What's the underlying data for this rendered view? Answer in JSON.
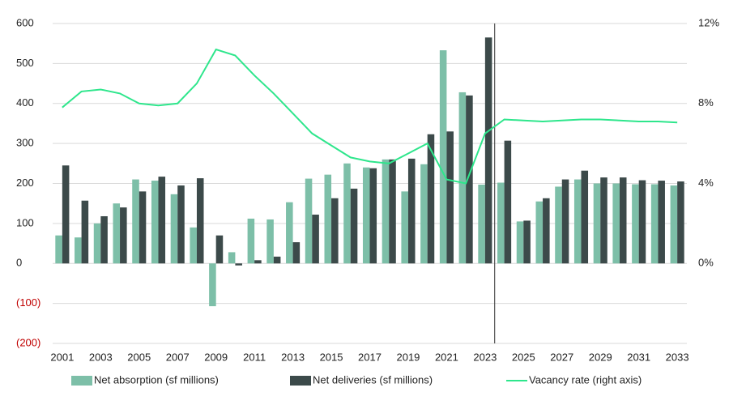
{
  "chart_data": {
    "type": "bar_line",
    "categories": [
      "2001",
      null,
      "2003",
      null,
      "2005",
      null,
      "2007",
      null,
      "2009",
      null,
      "2011",
      null,
      "2013",
      null,
      "2015",
      null,
      "2017",
      null,
      "2019",
      null,
      "2021",
      null,
      "2023",
      null,
      "2025",
      null,
      "2027",
      null,
      "2029",
      null,
      "2031",
      null,
      "2033"
    ],
    "series": [
      {
        "name": "Net absorption (sf millions)",
        "type": "bar",
        "color": "#7dbfa8",
        "values": [
          70,
          65,
          100,
          150,
          210,
          207,
          173,
          90,
          -107,
          28,
          112,
          110,
          153,
          212,
          222,
          250,
          240,
          260,
          180,
          248,
          533,
          428,
          197,
          202,
          105,
          155,
          192,
          210,
          200,
          200,
          198,
          198,
          195
        ]
      },
      {
        "name": "Net deliveries (sf millions)",
        "type": "bar",
        "color": "#3c4a4a",
        "values": [
          245,
          157,
          118,
          140,
          180,
          217,
          195,
          213,
          70,
          -5,
          8,
          17,
          53,
          122,
          163,
          187,
          238,
          260,
          262,
          323,
          330,
          420,
          565,
          307,
          107,
          163,
          210,
          232,
          215,
          215,
          208,
          207,
          205
        ]
      },
      {
        "name": "Vacancy rate (right axis)",
        "type": "line",
        "axis": "y2",
        "color": "#2ee68c",
        "values": [
          7.8,
          8.6,
          8.7,
          8.5,
          8.0,
          7.9,
          8.0,
          9.0,
          10.7,
          10.4,
          9.4,
          8.5,
          7.5,
          6.5,
          5.9,
          5.3,
          5.1,
          5.0,
          5.5,
          6.0,
          4.2,
          4.0,
          6.5,
          7.2,
          7.15,
          7.1,
          7.15,
          7.2,
          7.2,
          7.15,
          7.1,
          7.1,
          7.05
        ]
      }
    ],
    "ylim": [
      -200,
      600
    ],
    "yticks": [
      {
        "value": -200,
        "label": "(200)"
      },
      {
        "value": -100,
        "label": "(100)"
      },
      0,
      100,
      200,
      300,
      400,
      500,
      600
    ],
    "negative_tick_color": "#c00000",
    "y2lim": [
      -4,
      12
    ],
    "y2ticks": [
      {
        "value": 0,
        "label": "0%"
      },
      {
        "value": 4,
        "label": "4%"
      },
      {
        "value": 8,
        "label": "8%"
      },
      {
        "value": 12,
        "label": "12%"
      }
    ],
    "grid": true,
    "legend": "bottom"
  }
}
